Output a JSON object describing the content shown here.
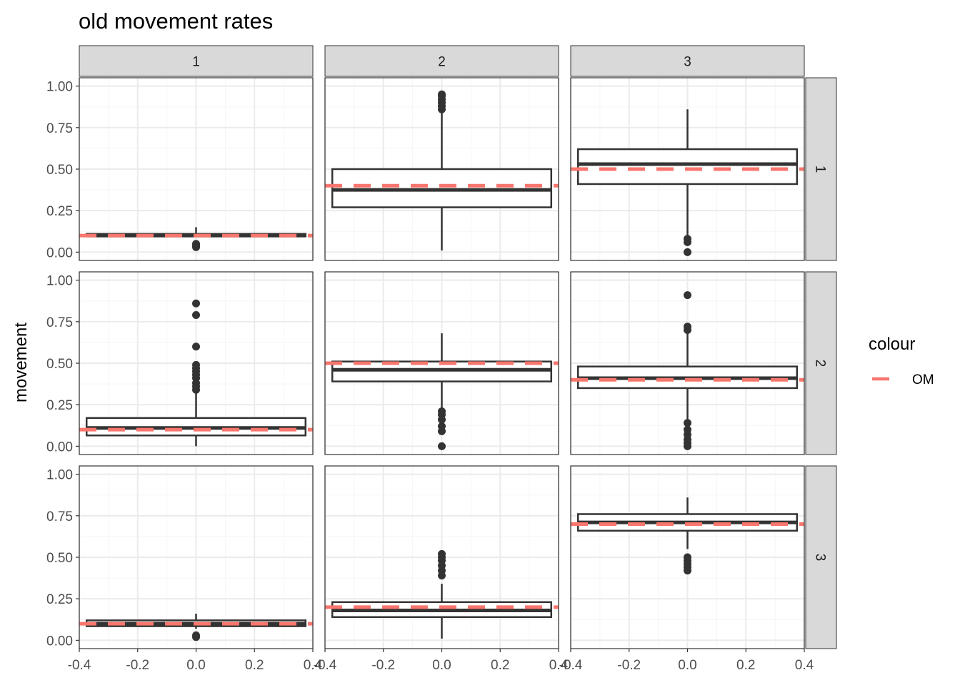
{
  "chart_data": {
    "type": "boxplot",
    "title": "old movement rates",
    "xlabel": "",
    "ylabel": "movement",
    "xlim": [
      -0.4,
      0.4
    ],
    "ylim": [
      0,
      1
    ],
    "x_ticks": [
      "-0.4",
      "-0.2",
      "0.0",
      "0.2",
      "0.4"
    ],
    "y_ticks": [
      "0.00",
      "0.25",
      "0.50",
      "0.75",
      "1.00"
    ],
    "col_strips": [
      "1",
      "2",
      "3"
    ],
    "row_strips": [
      "1",
      "2",
      "3"
    ],
    "legend": {
      "title": "colour",
      "entries": [
        "OM"
      ],
      "om_color": "#F8766D"
    },
    "colors": {
      "box": "#333333",
      "grid_major": "#ebebeb",
      "grid_minor": "#f5f5f5",
      "strip_fill": "#d9d9d9"
    },
    "panels": [
      {
        "row": "1",
        "col": "1",
        "q1": 0.095,
        "median": 0.1,
        "q3": 0.11,
        "whisker_low": 0.09,
        "whisker_high": 0.15,
        "outliers": [
          0.03,
          0.04,
          0.05
        ],
        "om": 0.1
      },
      {
        "row": "1",
        "col": "2",
        "q1": 0.27,
        "median": 0.375,
        "q3": 0.5,
        "whisker_low": 0.01,
        "whisker_high": 0.85,
        "outliers": [
          0.86,
          0.88,
          0.9,
          0.92,
          0.94,
          0.95
        ],
        "om": 0.4
      },
      {
        "row": "1",
        "col": "3",
        "q1": 0.41,
        "median": 0.53,
        "q3": 0.62,
        "whisker_low": 0.1,
        "whisker_high": 0.86,
        "outliers": [
          0.0,
          0.06,
          0.08
        ],
        "om": 0.5
      },
      {
        "row": "2",
        "col": "1",
        "q1": 0.065,
        "median": 0.11,
        "q3": 0.17,
        "whisker_low": 0.0,
        "whisker_high": 0.33,
        "outliers": [
          0.34,
          0.36,
          0.38,
          0.41,
          0.43,
          0.45,
          0.47,
          0.49,
          0.6,
          0.79,
          0.86
        ],
        "om": 0.1
      },
      {
        "row": "2",
        "col": "2",
        "q1": 0.39,
        "median": 0.46,
        "q3": 0.51,
        "whisker_low": 0.23,
        "whisker_high": 0.68,
        "outliers": [
          0.0,
          0.09,
          0.12,
          0.16,
          0.19,
          0.21
        ],
        "om": 0.5
      },
      {
        "row": "2",
        "col": "3",
        "q1": 0.35,
        "median": 0.41,
        "q3": 0.48,
        "whisker_low": 0.15,
        "whisker_high": 0.68,
        "outliers": [
          0.0,
          0.02,
          0.04,
          0.07,
          0.1,
          0.14,
          0.7,
          0.72,
          0.91
        ],
        "om": 0.4
      },
      {
        "row": "3",
        "col": "1",
        "q1": 0.085,
        "median": 0.1,
        "q3": 0.12,
        "whisker_low": 0.07,
        "whisker_high": 0.16,
        "outliers": [
          0.02,
          0.03
        ],
        "om": 0.1
      },
      {
        "row": "3",
        "col": "2",
        "q1": 0.14,
        "median": 0.18,
        "q3": 0.23,
        "whisker_low": 0.01,
        "whisker_high": 0.34,
        "outliers": [
          0.39,
          0.42,
          0.45,
          0.48,
          0.5,
          0.52
        ],
        "om": 0.2
      },
      {
        "row": "3",
        "col": "3",
        "q1": 0.66,
        "median": 0.71,
        "q3": 0.76,
        "whisker_low": 0.55,
        "whisker_high": 0.86,
        "outliers": [
          0.42,
          0.44,
          0.46,
          0.48,
          0.5
        ],
        "om": 0.7
      }
    ]
  }
}
